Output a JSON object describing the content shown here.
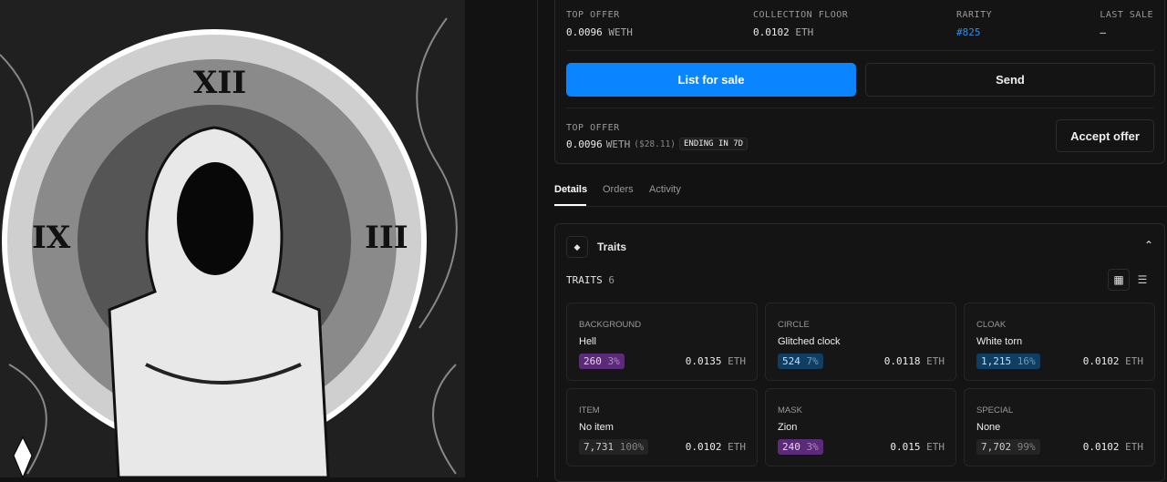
{
  "stats": [
    {
      "label": "TOP OFFER",
      "value": "0.0096",
      "unit": "WETH"
    },
    {
      "label": "COLLECTION FLOOR",
      "value": "0.0102",
      "unit": "ETH"
    },
    {
      "label": "RARITY",
      "value": "#825"
    },
    {
      "label": "LAST SALE",
      "value": "–"
    }
  ],
  "buttons": {
    "list": "List for sale",
    "send": "Send",
    "accept": "Accept offer"
  },
  "offer": {
    "label": "TOP OFFER",
    "value": "0.0096",
    "unit": "WETH",
    "usd": "($28.11)",
    "badge": "ENDING IN 7D"
  },
  "tabs": [
    "Details",
    "Orders",
    "Activity"
  ],
  "traits_section": {
    "title": "Traits",
    "label": "TRAITS",
    "count": "6"
  },
  "traits": [
    {
      "type": "BACKGROUND",
      "value": "Hell",
      "count": "260",
      "pct": "3%",
      "price": "0.0135",
      "unit": "ETH",
      "color": "purple"
    },
    {
      "type": "CIRCLE",
      "value": "Glitched clock",
      "count": "524",
      "pct": "7%",
      "price": "0.0118",
      "unit": "ETH",
      "color": "blue"
    },
    {
      "type": "CLOAK",
      "value": "White torn",
      "count": "1,215",
      "pct": "16%",
      "price": "0.0102",
      "unit": "ETH",
      "color": "blue"
    },
    {
      "type": "ITEM",
      "value": "No item",
      "count": "7,731",
      "pct": "100%",
      "price": "0.0102",
      "unit": "ETH",
      "color": "gray"
    },
    {
      "type": "MASK",
      "value": "Zion",
      "count": "240",
      "pct": "3%",
      "price": "0.015",
      "unit": "ETH",
      "color": "purple"
    },
    {
      "type": "SPECIAL",
      "value": "None",
      "count": "7,702",
      "pct": "99%",
      "price": "0.0102",
      "unit": "ETH",
      "color": "gray"
    }
  ],
  "colors": {
    "accent": "#0a84ff",
    "rarity": "#2f8fe8",
    "purple": "#5b2a78",
    "blue": "#0f3e62",
    "gray": "#242424"
  }
}
